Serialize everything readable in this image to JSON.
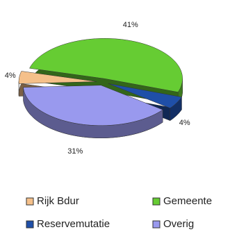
{
  "chart_data": {
    "type": "pie",
    "categories": [
      "Gemeente",
      "Reservemutatie",
      "Overig",
      "Rijk Bdur"
    ],
    "values": [
      41,
      4,
      31,
      4
    ],
    "value_labels": [
      "41%",
      "4%",
      "31%",
      "4%"
    ],
    "colors": [
      "#66cc33",
      "#1f4fa8",
      "#9999ee",
      "#f5c08a"
    ],
    "legend": "bottom"
  }
}
